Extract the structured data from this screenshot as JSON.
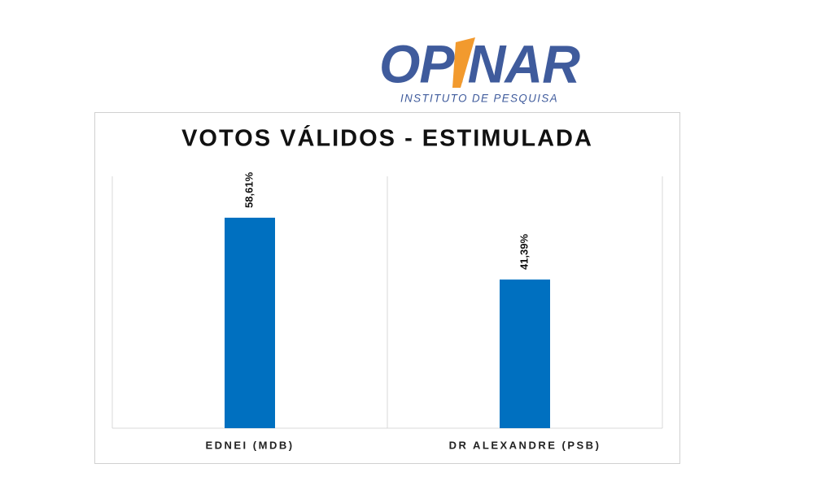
{
  "logo": {
    "name": "OPINAR",
    "tagline": "INSTITUTO DE PESQUISA"
  },
  "chart_data": {
    "type": "bar",
    "title": "VOTOS VÁLIDOS - ESTIMULADA",
    "categories": [
      "EDNEI (MDB)",
      "DR ALEXANDRE (PSB)"
    ],
    "values": [
      58.61,
      41.39
    ],
    "value_labels": [
      "58,61%",
      "41,39%"
    ],
    "color": "#0070c0"
  }
}
